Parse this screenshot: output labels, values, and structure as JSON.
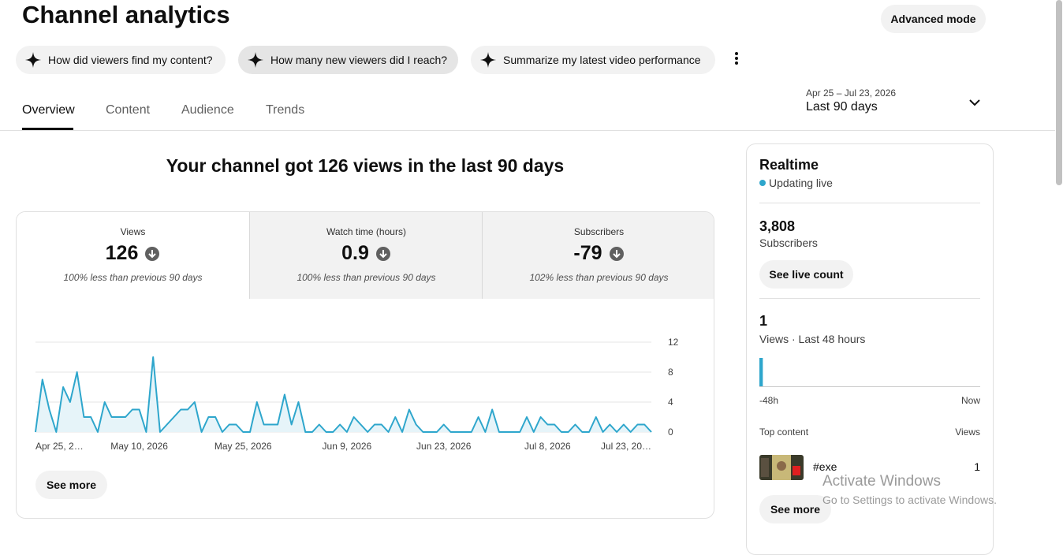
{
  "header": {
    "title": "Channel analytics",
    "advanced_mode": "Advanced mode"
  },
  "suggestions": [
    "How did viewers find my content?",
    "How many new viewers did I reach?",
    "Summarize my latest video performance"
  ],
  "tabs": [
    "Overview",
    "Content",
    "Audience",
    "Trends"
  ],
  "date_range": {
    "dates": "Apr 25 – Jul 23, 2026",
    "label": "Last 90 days"
  },
  "headline": "Your channel got 126 views in the last 90 days",
  "metrics": [
    {
      "label": "Views",
      "value": 126,
      "note": "100% less than previous 90 days"
    },
    {
      "label": "Watch time (hours)",
      "value": 0.9,
      "note": "100% less than previous 90 days"
    },
    {
      "label": "Subscribers",
      "value": -79,
      "note": "102% less than previous 90 days"
    }
  ],
  "chart_data": [
    {
      "type": "line",
      "categories": [
        "Apr 25, 2…",
        null,
        null,
        null,
        null,
        null,
        null,
        null,
        null,
        null,
        null,
        null,
        null,
        null,
        null,
        "May 10, 2026",
        null,
        null,
        null,
        null,
        null,
        null,
        null,
        null,
        null,
        null,
        null,
        null,
        null,
        null,
        "May 25, 2026",
        null,
        null,
        null,
        null,
        null,
        null,
        null,
        null,
        null,
        null,
        null,
        null,
        null,
        null,
        "Jun 9, 2026",
        null,
        null,
        null,
        null,
        null,
        null,
        null,
        null,
        null,
        null,
        null,
        null,
        null,
        "Jun 23, 2026",
        null,
        null,
        null,
        null,
        null,
        null,
        null,
        null,
        null,
        null,
        null,
        null,
        null,
        null,
        "Jul 8, 2026",
        null,
        null,
        null,
        null,
        null,
        null,
        null,
        null,
        null,
        null,
        null,
        null,
        null,
        null,
        "Jul 23, 20…"
      ],
      "values": [
        0,
        7,
        3,
        0,
        6,
        4,
        8,
        2,
        2,
        0,
        4,
        2,
        2,
        2,
        3,
        3,
        0,
        10,
        0,
        1,
        2,
        3,
        3,
        4,
        0,
        2,
        2,
        0,
        1,
        1,
        0,
        0,
        4,
        1,
        1,
        1,
        5,
        1,
        4,
        0,
        0,
        1,
        0,
        0,
        1,
        0,
        2,
        1,
        0,
        1,
        1,
        0,
        2,
        0,
        3,
        1,
        0,
        0,
        0,
        1,
        0,
        0,
        0,
        0,
        2,
        0,
        3,
        0,
        0,
        0,
        0,
        2,
        0,
        2,
        1,
        1,
        0,
        0,
        1,
        0,
        0,
        2,
        0,
        1,
        0,
        1,
        0,
        1,
        1,
        0
      ],
      "color": "#2ea6cc",
      "ylim": [
        0,
        12
      ],
      "yticks": [
        0,
        4,
        8,
        12
      ],
      "grid": true
    },
    {
      "type": "bar",
      "categories": [
        "-48h",
        null,
        null,
        null,
        null,
        null,
        null,
        null,
        null,
        null,
        null,
        null,
        null,
        null,
        null,
        null,
        null,
        null,
        null,
        null,
        null,
        null,
        null,
        null,
        null,
        null,
        null,
        null,
        null,
        null,
        null,
        null,
        null,
        null,
        null,
        null,
        null,
        null,
        null,
        null,
        null,
        null,
        null,
        null,
        null,
        null,
        null,
        "Now"
      ],
      "values": [
        1,
        0,
        0,
        0,
        0,
        0,
        0,
        0,
        0,
        0,
        0,
        0,
        0,
        0,
        0,
        0,
        0,
        0,
        0,
        0,
        0,
        0,
        0,
        0,
        0,
        0,
        0,
        0,
        0,
        0,
        0,
        0,
        0,
        0,
        0,
        0,
        0,
        0,
        0,
        0,
        0,
        0,
        0,
        0,
        0,
        0,
        0,
        0
      ],
      "color": "#2ea6cc"
    }
  ],
  "see_more": "See more",
  "realtime": {
    "title": "Realtime",
    "status": "Updating live",
    "subscribers": {
      "value": "3,808",
      "label": "Subscribers"
    },
    "see_live_count": "See live count",
    "views": {
      "value": 1,
      "label": "Views · Last 48 hours"
    },
    "top_content": {
      "header": "Top content",
      "views_header": "Views",
      "items": [
        {
          "title": "#exe",
          "views": 1
        }
      ]
    },
    "see_more": "See more"
  },
  "watermark": {
    "title": "Activate Windows",
    "text": "Go to Settings to activate Windows."
  }
}
